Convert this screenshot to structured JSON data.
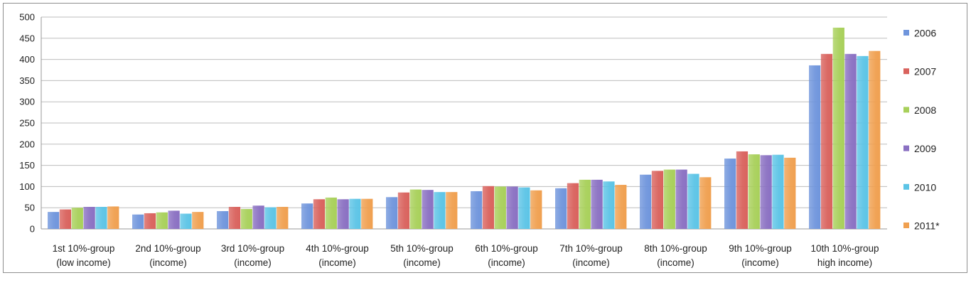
{
  "chart_data": {
    "type": "bar",
    "categories": [
      [
        "1st 10%-group",
        "(low income)"
      ],
      [
        "2nd 10%-group",
        "(income)"
      ],
      [
        "3rd 10%-group",
        "(income)"
      ],
      [
        "4th 10%-group",
        "(income)"
      ],
      [
        "5th 10%-group",
        "(income)"
      ],
      [
        "6th 10%-group",
        "(income)"
      ],
      [
        "7th 10%-group",
        "(income)"
      ],
      [
        "8th 10%-group",
        "(income)"
      ],
      [
        "9th 10%-group",
        "(income)"
      ],
      [
        "10th 10%-group",
        "high income)"
      ]
    ],
    "series": [
      {
        "name": "2006",
        "color": "#6f95dc",
        "values": [
          40,
          34,
          42,
          60,
          75,
          89,
          96,
          128,
          166,
          386
        ]
      },
      {
        "name": "2007",
        "color": "#d9625d",
        "values": [
          46,
          37,
          52,
          70,
          86,
          101,
          108,
          137,
          183,
          413
        ]
      },
      {
        "name": "2008",
        "color": "#a8d05a",
        "values": [
          50,
          39,
          47,
          74,
          93,
          100,
          116,
          140,
          176,
          475
        ]
      },
      {
        "name": "2009",
        "color": "#8a70c2",
        "values": [
          52,
          43,
          55,
          70,
          92,
          100,
          116,
          140,
          174,
          413
        ]
      },
      {
        "name": "2010",
        "color": "#5cc4e6",
        "values": [
          52,
          36,
          51,
          71,
          87,
          98,
          112,
          130,
          175,
          408
        ]
      },
      {
        "name": "2011*",
        "color": "#f0a050",
        "values": [
          53,
          40,
          52,
          71,
          87,
          91,
          104,
          122,
          168,
          420
        ]
      }
    ],
    "ylim": [
      0,
      500
    ],
    "yticks": [
      "0",
      "50",
      "100",
      "150",
      "200",
      "250",
      "300",
      "350",
      "400",
      "450",
      "500"
    ],
    "grid": true,
    "legend": "right",
    "title": "",
    "xlabel": "",
    "ylabel": ""
  }
}
